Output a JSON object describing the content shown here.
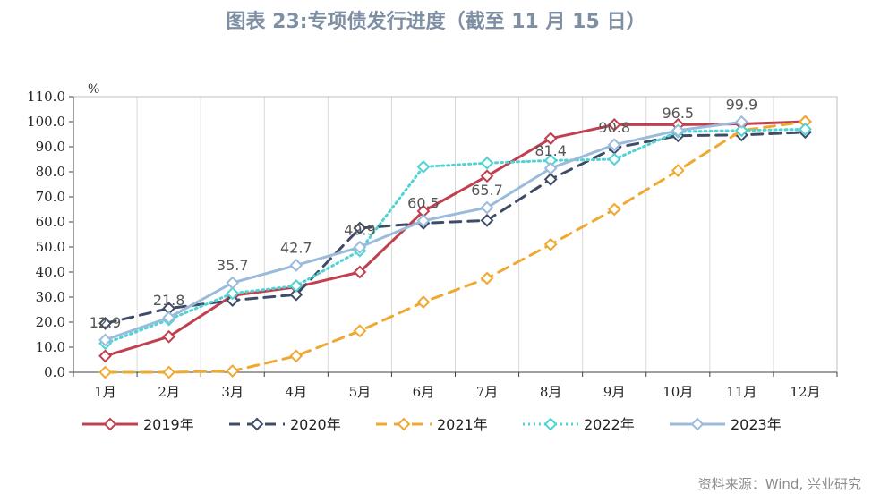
{
  "title": "图表 23:专项债发行进度（截至 11 月 15 日）",
  "source": "资料来源：Wind, 兴业研究",
  "chart_data": {
    "type": "line",
    "title": "图表 23:专项债发行进度（截至 11 月 15 日）",
    "unit": "%",
    "xlabel": "",
    "ylabel": "",
    "categories": [
      "1月",
      "2月",
      "3月",
      "4月",
      "5月",
      "6月",
      "7月",
      "8月",
      "9月",
      "10月",
      "11月",
      "12月"
    ],
    "ylim": [
      0,
      110
    ],
    "ytick_step": 10,
    "ytick_labels": [
      "0.0",
      "10.0",
      "20.0",
      "30.0",
      "40.0",
      "50.0",
      "60.0",
      "70.0",
      "80.0",
      "90.0",
      "100.0",
      "110.0"
    ],
    "grid": "vertical",
    "legend_position": "bottom",
    "series": [
      {
        "name": "2019年",
        "color": "#c0404f",
        "dash": "solid",
        "values": [
          6.5,
          14.2,
          30.6,
          34.0,
          40.0,
          64.3,
          78.3,
          93.3,
          98.8,
          98.8,
          99.1,
          100.0
        ]
      },
      {
        "name": "2020年",
        "color": "#3e4c67",
        "dash": "dash",
        "values": [
          19.5,
          25.5,
          28.7,
          31.0,
          57.5,
          59.5,
          60.6,
          77.0,
          89.5,
          94.4,
          94.7,
          95.8
        ]
      },
      {
        "name": "2021年",
        "color": "#f0a830",
        "dash": "dash",
        "values": [
          0.0,
          0.0,
          0.5,
          6.5,
          16.5,
          28.0,
          37.5,
          51.0,
          65.0,
          80.5,
          96.5,
          100.0
        ]
      },
      {
        "name": "2022年",
        "color": "#4fd3d4",
        "dash": "dot",
        "values": [
          11.5,
          21.0,
          31.5,
          34.5,
          48.5,
          82.0,
          83.5,
          84.5,
          85.0,
          96.0,
          96.5,
          97.0
        ]
      },
      {
        "name": "2023年",
        "color": "#9bbbdb",
        "dash": "solid",
        "values": [
          12.9,
          21.8,
          35.7,
          42.7,
          49.9,
          60.5,
          65.7,
          81.4,
          90.8,
          96.5,
          99.9,
          null
        ]
      }
    ],
    "data_labels": [
      {
        "category": "1月",
        "value": 12.9,
        "text": "12.9"
      },
      {
        "category": "2月",
        "value": 21.8,
        "text": "21.8"
      },
      {
        "category": "3月",
        "value": 35.7,
        "text": "35.7"
      },
      {
        "category": "4月",
        "value": 42.7,
        "text": "42.7"
      },
      {
        "category": "5月",
        "value": 49.9,
        "text": "49.9"
      },
      {
        "category": "6月",
        "value": 60.5,
        "text": "60.5"
      },
      {
        "category": "7月",
        "value": 65.7,
        "text": "65.7"
      },
      {
        "category": "8月",
        "value": 81.4,
        "text": "81.4"
      },
      {
        "category": "9月",
        "value": 90.8,
        "text": "90.8"
      },
      {
        "category": "10月",
        "value": 96.5,
        "text": "96.5"
      },
      {
        "category": "11月",
        "value": 99.9,
        "text": "99.9"
      }
    ]
  }
}
